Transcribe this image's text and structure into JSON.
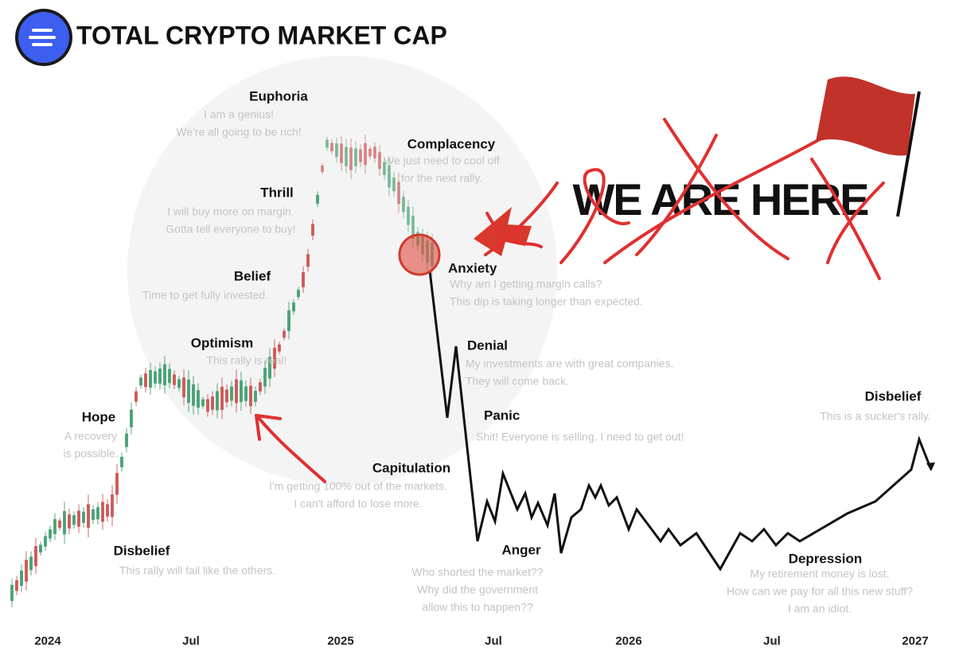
{
  "header": {
    "title": "TOTAL CRYPTO MARKET CAP"
  },
  "annotation": "WE ARE HERE",
  "x_axis": [
    "2024",
    "Jul",
    "2025",
    "Jul",
    "2026",
    "Jul",
    "2027"
  ],
  "phases": [
    {
      "label": "Disbelief",
      "lines": [
        "This rally will fail like the others."
      ]
    },
    {
      "label": "Hope",
      "lines": [
        "A recovery",
        "is possible."
      ]
    },
    {
      "label": "Optimism",
      "lines": [
        "This rally is real!"
      ]
    },
    {
      "label": "Belief",
      "lines": [
        "Time to get fully invested."
      ]
    },
    {
      "label": "Thrill",
      "lines": [
        "I will buy more on margin.",
        "Gotta tell everyone to buy!"
      ]
    },
    {
      "label": "Euphoria",
      "lines": [
        "I am a genius!",
        "We're all going to be rich!"
      ]
    },
    {
      "label": "Complacency",
      "lines": [
        "We just need to cool off",
        "for the next rally."
      ]
    },
    {
      "label": "Anxiety",
      "lines": [
        "Why am I getting margin calls?",
        "This dip is taking longer than expected."
      ]
    },
    {
      "label": "Denial",
      "lines": [
        "My investments are with great companies.",
        "They will come back."
      ]
    },
    {
      "label": "Panic",
      "lines": [
        "Shit! Everyone is selling. I need to get out!"
      ]
    },
    {
      "label": "Capitulation",
      "lines": [
        "I'm getting 100% out of the markets.",
        "I can't afford to lose more."
      ]
    },
    {
      "label": "Anger",
      "lines": [
        "Who shorted the market??",
        "Why did the government",
        "allow this to happen??"
      ]
    },
    {
      "label": "Depression",
      "lines": [
        "My retirement money is lost.",
        "How can we pay for all this new stuff?",
        "I am an idiot."
      ]
    },
    {
      "label": "Disbelief",
      "lines": [
        "This is a sucker's rally."
      ]
    }
  ]
}
